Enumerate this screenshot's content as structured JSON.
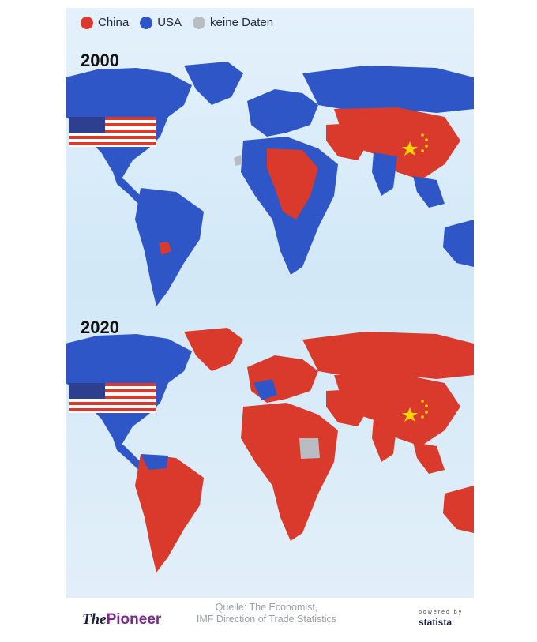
{
  "legend": [
    {
      "label": "China",
      "color": "#d93a2b"
    },
    {
      "label": "USA",
      "color": "#2f56c6"
    },
    {
      "label": "keine Daten",
      "color": "#b9bcc2"
    }
  ],
  "maps": [
    {
      "year": "2000"
    },
    {
      "year": "2020"
    }
  ],
  "colors": {
    "china": "#d93a2b",
    "usa": "#2f56c6",
    "nodata": "#b9bcc2",
    "ocean": "#d6eaf8"
  },
  "footer": {
    "logo_the": "The",
    "logo_pioneer": "Pioneer",
    "source_line1": "Quelle: The Economist,",
    "source_line2": "IMF Direction of Trade Statistics",
    "powered_by": "powered by",
    "statista": "statista"
  }
}
